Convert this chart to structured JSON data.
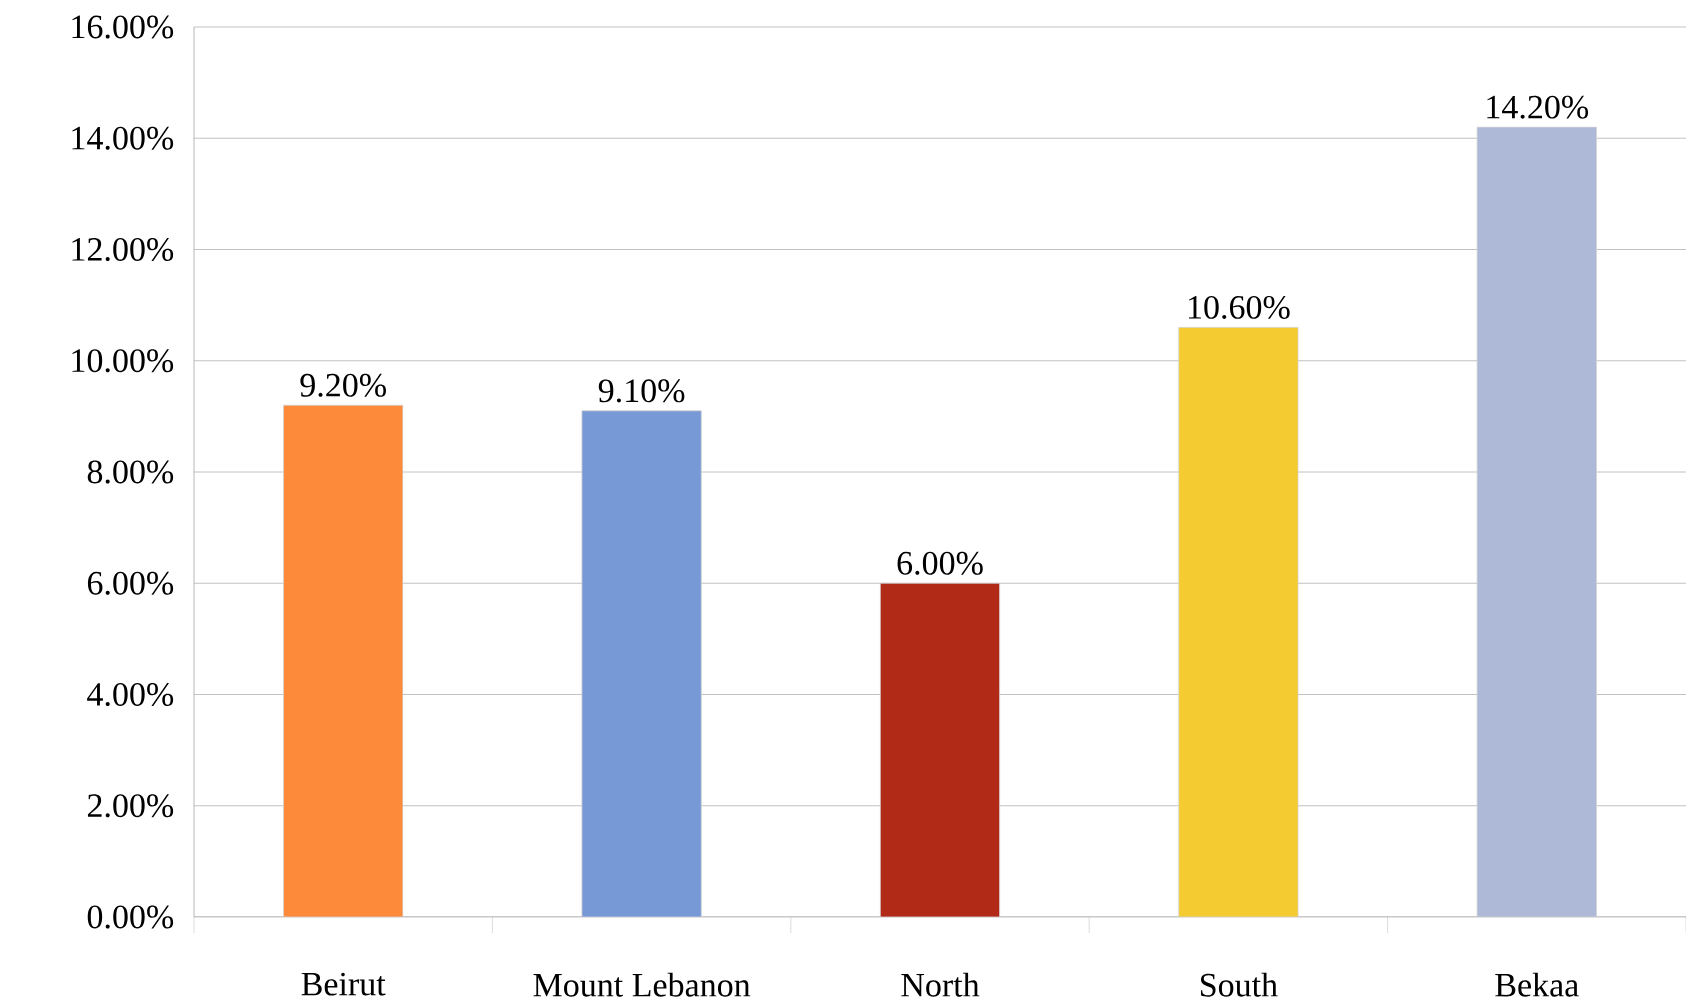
{
  "chart_data": {
    "type": "bar",
    "categories": [
      "Beirut",
      "Mount Lebanon",
      "North",
      "South",
      "Bekaa"
    ],
    "values": [
      9.2,
      9.1,
      6.0,
      10.6,
      14.2
    ],
    "colors": [
      "#fd8a3a",
      "#7799d6",
      "#b02a17",
      "#f4cb30",
      "#adb9d6"
    ],
    "value_labels": [
      "9.20%",
      "9.10%",
      "6.00%",
      "10.60%",
      "14.20%"
    ],
    "ylim": [
      0,
      16
    ],
    "yticks": [
      {
        "value": 0,
        "label": "0.00%"
      },
      {
        "value": 2,
        "label": "2.00%"
      },
      {
        "value": 4,
        "label": "4.00%"
      },
      {
        "value": 6,
        "label": "6.00%"
      },
      {
        "value": 8,
        "label": "8.00%"
      },
      {
        "value": 10,
        "label": "10.00%"
      },
      {
        "value": 12,
        "label": "12.00%"
      },
      {
        "value": 14,
        "label": "14.00%"
      },
      {
        "value": 16,
        "label": "16.00%"
      }
    ],
    "grid": "y"
  }
}
